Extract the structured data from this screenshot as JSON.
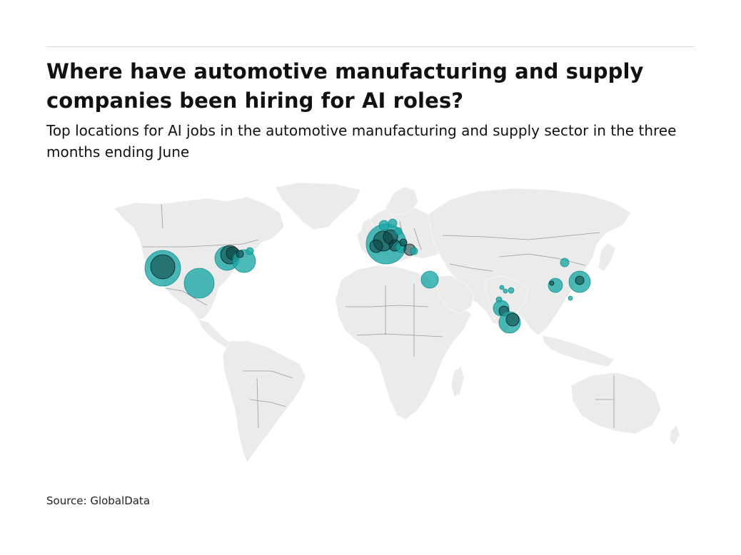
{
  "header": {
    "title": "Where have automotive manufacturing and supply companies been hiring for AI roles?",
    "subtitle": "Top locations for AI jobs in the automotive manufacturing and supply sector in the three months ending June"
  },
  "map": {
    "type": "bubble-map",
    "base": "world",
    "land_color": "#ebebeb",
    "border_color": "#9a9a9a",
    "bubble_color": "#1aa7a4"
  },
  "footer": {
    "source": "Source: GlobalData"
  }
}
